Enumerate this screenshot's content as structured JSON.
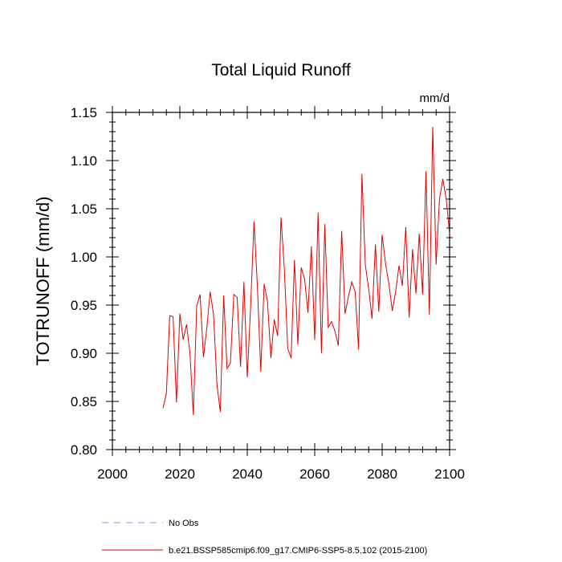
{
  "chart_data": {
    "type": "line",
    "title": "Total Liquid Runoff",
    "units_label": "mm/d",
    "xlabel": "",
    "ylabel": "TOTRUNOFF  (mm/d)",
    "xlim": [
      2000,
      2100
    ],
    "ylim": [
      0.8,
      1.15
    ],
    "x_major_ticks": [
      2000,
      2020,
      2040,
      2060,
      2080,
      2100
    ],
    "x_tick_labels": [
      "2000",
      "2020",
      "2040",
      "2060",
      "2080",
      "2100"
    ],
    "y_major_ticks": [
      0.8,
      0.85,
      0.9,
      0.95,
      1.0,
      1.05,
      1.1,
      1.15
    ],
    "y_tick_labels": [
      "0.80",
      "0.85",
      "0.90",
      "0.95",
      "1.00",
      "1.05",
      "1.10",
      "1.15"
    ],
    "x_minor_step": 4,
    "y_minor_step": 0.01,
    "series": [
      {
        "name": "b.e21.BSSP585cmip6.f09_g17.CMIP6-SSP5-8.5.102 (2015-2100)",
        "color": "#e00000",
        "style": "solid",
        "x_start": 2015,
        "x_step": 1,
        "values": [
          0.843,
          0.858,
          0.939,
          0.938,
          0.849,
          0.941,
          0.914,
          0.93,
          0.9,
          0.836,
          0.949,
          0.961,
          0.896,
          0.926,
          0.964,
          0.94,
          0.868,
          0.839,
          0.96,
          0.884,
          0.89,
          0.961,
          0.958,
          0.886,
          0.974,
          0.875,
          0.949,
          1.037,
          0.97,
          0.881,
          0.972,
          0.954,
          0.895,
          0.935,
          0.918,
          1.041,
          0.987,
          0.905,
          0.895,
          0.997,
          0.909,
          0.989,
          0.977,
          0.942,
          1.011,
          0.914,
          1.046,
          0.9,
          1.034,
          0.927,
          0.933,
          0.923,
          0.908,
          1.027,
          0.941,
          0.959,
          0.974,
          0.964,
          0.904,
          1.086,
          0.992,
          0.967,
          0.936,
          1.013,
          0.943,
          1.023,
          0.993,
          0.972,
          0.944,
          0.964,
          0.991,
          0.97,
          1.031,
          0.937,
          1.008,
          0.962,
          1.024,
          0.961,
          1.089,
          0.94,
          1.135,
          0.992,
          1.06,
          1.081,
          1.06,
          1.024
        ]
      }
    ],
    "legend": [
      {
        "label": "No Obs",
        "color": "#8c8cf0",
        "style": "dashed"
      },
      {
        "label": "b.e21.BSSP585cmip6.f09_g17.CMIP6-SSP5-8.5.102 (2015-2100)",
        "color": "#e00000",
        "style": "solid"
      }
    ],
    "legend_position": "bottom-left"
  }
}
